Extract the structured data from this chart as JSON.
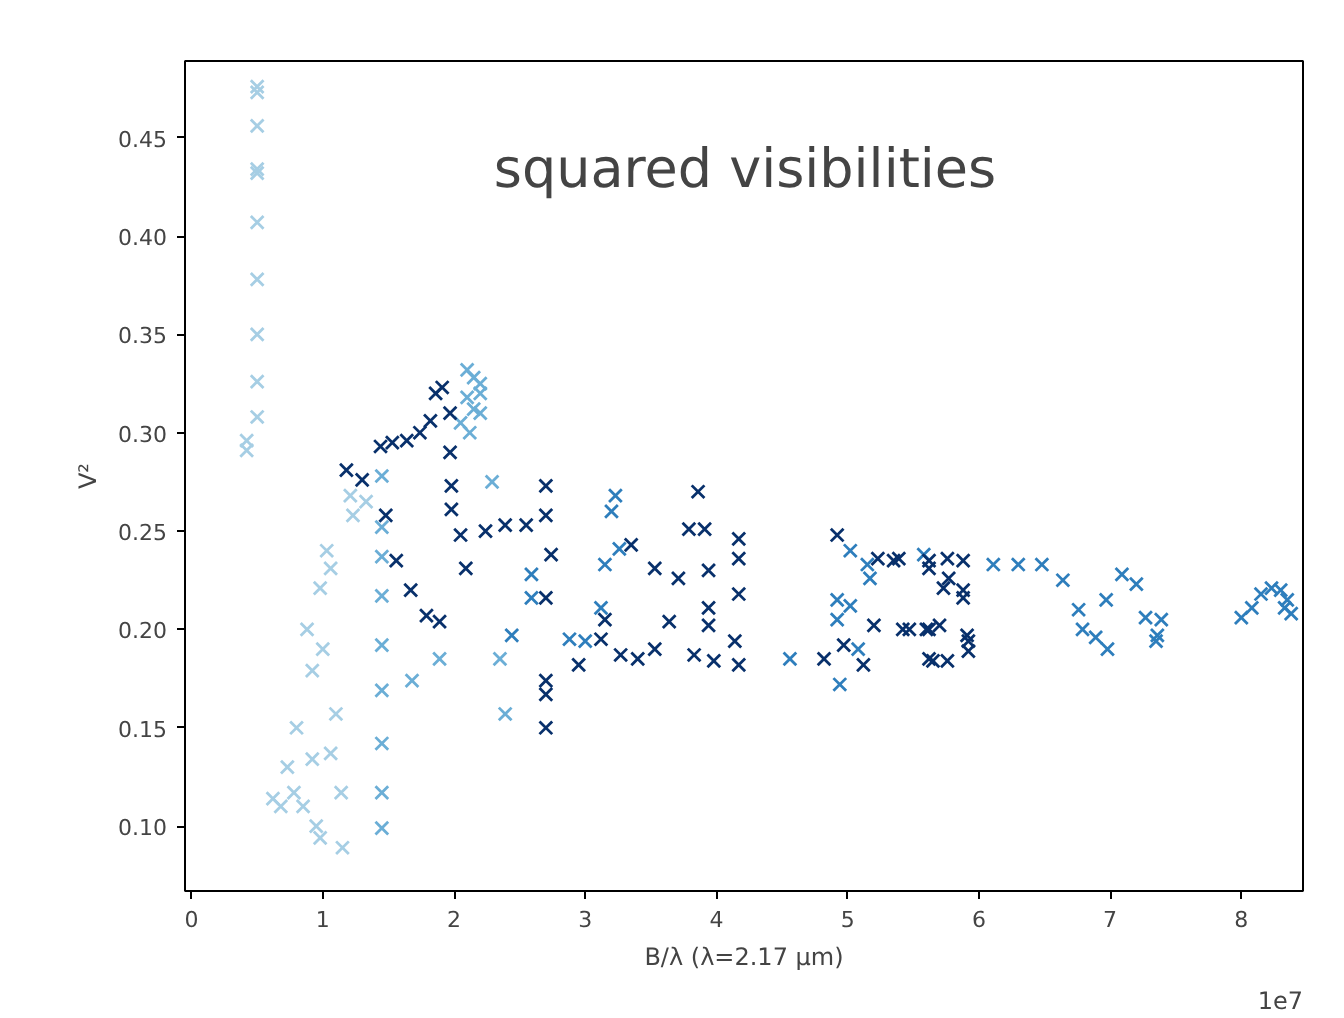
{
  "chart_data": {
    "type": "scatter",
    "title": "squared visibilities",
    "xlabel": "B/λ (λ=2.17 μm)",
    "ylabel": "V²",
    "annotations": [
      "1e7"
    ],
    "xlim": [
      -0.05,
      8.47
    ],
    "ylim": [
      0.067,
      0.489
    ],
    "xticks": [
      0,
      1,
      2,
      3,
      4,
      5,
      6,
      7,
      8
    ],
    "yticks": [
      {
        "value": 0.1,
        "label": "0.10"
      },
      {
        "value": 0.15,
        "label": "0.15"
      },
      {
        "value": 0.2,
        "label": "0.20"
      },
      {
        "value": 0.25,
        "label": "0.25"
      },
      {
        "value": 0.3,
        "label": "0.30"
      },
      {
        "value": 0.35,
        "label": "0.35"
      },
      {
        "value": 0.4,
        "label": "0.40"
      },
      {
        "value": 0.45,
        "label": "0.45"
      }
    ],
    "grid": false,
    "marker": "cross",
    "series": [
      {
        "color": "#a6cee4",
        "x": [
          0.5,
          0.5,
          0.5,
          0.5,
          0.5,
          0.5,
          0.5,
          0.5,
          0.5,
          0.5,
          0.42,
          0.42,
          0.62,
          0.73,
          0.8,
          0.88,
          0.92,
          0.98,
          1.03,
          1.06,
          1.0,
          1.06,
          1.14,
          1.15,
          0.95,
          0.98,
          0.85,
          1.1,
          0.92,
          1.23,
          1.33,
          1.21,
          0.68,
          0.78
        ],
        "values": [
          0.476,
          0.473,
          0.456,
          0.434,
          0.432,
          0.407,
          0.378,
          0.35,
          0.326,
          0.308,
          0.296,
          0.291,
          0.114,
          0.13,
          0.15,
          0.2,
          0.179,
          0.221,
          0.24,
          0.231,
          0.19,
          0.137,
          0.117,
          0.089,
          0.1,
          0.094,
          0.11,
          0.157,
          0.134,
          0.258,
          0.265,
          0.268,
          0.11,
          0.117
        ]
      },
      {
        "color": "#6baed6",
        "x": [
          2.1,
          2.15,
          2.2,
          2.1,
          2.15,
          2.2,
          2.05,
          2.12,
          2.2,
          1.45,
          1.45,
          1.45,
          1.45,
          1.45,
          1.45,
          1.45,
          1.45,
          1.45,
          2.29,
          2.35,
          2.39,
          1.89,
          1.68
        ],
        "values": [
          0.332,
          0.328,
          0.325,
          0.318,
          0.312,
          0.31,
          0.305,
          0.3,
          0.32,
          0.278,
          0.252,
          0.237,
          0.217,
          0.192,
          0.169,
          0.142,
          0.117,
          0.099,
          0.275,
          0.185,
          0.157,
          0.185,
          0.174
        ]
      },
      {
        "color": "#2e7ebc",
        "x": [
          3.23,
          3.2,
          3.26,
          3.15,
          3.12,
          2.88,
          3.0,
          4.56,
          4.92,
          5.02,
          4.92,
          4.94,
          5.15,
          5.17,
          5.08,
          5.02,
          5.58,
          2.44,
          2.59,
          2.59,
          6.11,
          6.3,
          6.48,
          6.64,
          7.09,
          7.2,
          6.76,
          6.97,
          6.79,
          6.89,
          6.98,
          7.27,
          7.39,
          7.35,
          7.36,
          8.0,
          8.08,
          8.15,
          8.23,
          8.3,
          8.35,
          8.38,
          8.33
        ],
        "values": [
          0.268,
          0.26,
          0.241,
          0.233,
          0.211,
          0.195,
          0.194,
          0.185,
          0.215,
          0.212,
          0.205,
          0.172,
          0.233,
          0.226,
          0.19,
          0.24,
          0.238,
          0.197,
          0.216,
          0.228,
          0.233,
          0.233,
          0.233,
          0.225,
          0.228,
          0.223,
          0.21,
          0.215,
          0.2,
          0.196,
          0.19,
          0.206,
          0.205,
          0.194,
          0.197,
          0.206,
          0.211,
          0.218,
          0.221,
          0.22,
          0.215,
          0.208,
          0.211
        ]
      },
      {
        "color": "#08306b",
        "x": [
          1.18,
          1.3,
          1.48,
          1.44,
          1.53,
          1.64,
          1.74,
          1.82,
          1.86,
          1.91,
          1.97,
          1.97,
          1.98,
          1.98,
          2.05,
          2.09,
          1.89,
          1.79,
          1.67,
          1.56,
          2.24,
          2.39,
          2.55,
          2.7,
          2.7,
          2.74,
          2.7,
          2.7,
          2.7,
          2.7,
          2.95,
          3.86,
          3.79,
          3.91,
          4.17,
          4.17,
          4.17,
          3.35,
          3.53,
          3.71,
          3.94,
          3.94,
          3.94,
          3.15,
          3.64,
          3.12,
          3.27,
          3.4,
          3.53,
          3.83,
          3.98,
          4.14,
          4.17,
          4.92,
          5.23,
          5.39,
          5.62,
          4.82,
          4.97,
          5.12,
          5.2,
          5.42,
          5.62,
          5.62,
          5.35,
          5.62,
          5.76,
          5.88,
          5.77,
          5.73,
          5.88,
          5.88,
          5.47,
          5.6,
          5.7,
          5.65,
          5.76,
          5.92,
          5.92,
          5.91
        ],
        "values": [
          0.281,
          0.276,
          0.258,
          0.293,
          0.295,
          0.296,
          0.3,
          0.306,
          0.32,
          0.323,
          0.31,
          0.29,
          0.273,
          0.261,
          0.248,
          0.231,
          0.204,
          0.207,
          0.22,
          0.235,
          0.25,
          0.253,
          0.253,
          0.258,
          0.273,
          0.238,
          0.216,
          0.174,
          0.167,
          0.15,
          0.182,
          0.27,
          0.251,
          0.251,
          0.246,
          0.236,
          0.218,
          0.243,
          0.231,
          0.226,
          0.23,
          0.211,
          0.202,
          0.205,
          0.204,
          0.195,
          0.187,
          0.185,
          0.19,
          0.187,
          0.184,
          0.194,
          0.182,
          0.248,
          0.236,
          0.236,
          0.231,
          0.185,
          0.192,
          0.182,
          0.202,
          0.2,
          0.2,
          0.185,
          0.235,
          0.235,
          0.236,
          0.235,
          0.226,
          0.221,
          0.216,
          0.22,
          0.2,
          0.2,
          0.202,
          0.184,
          0.184,
          0.194,
          0.189,
          0.197
        ]
      }
    ]
  }
}
